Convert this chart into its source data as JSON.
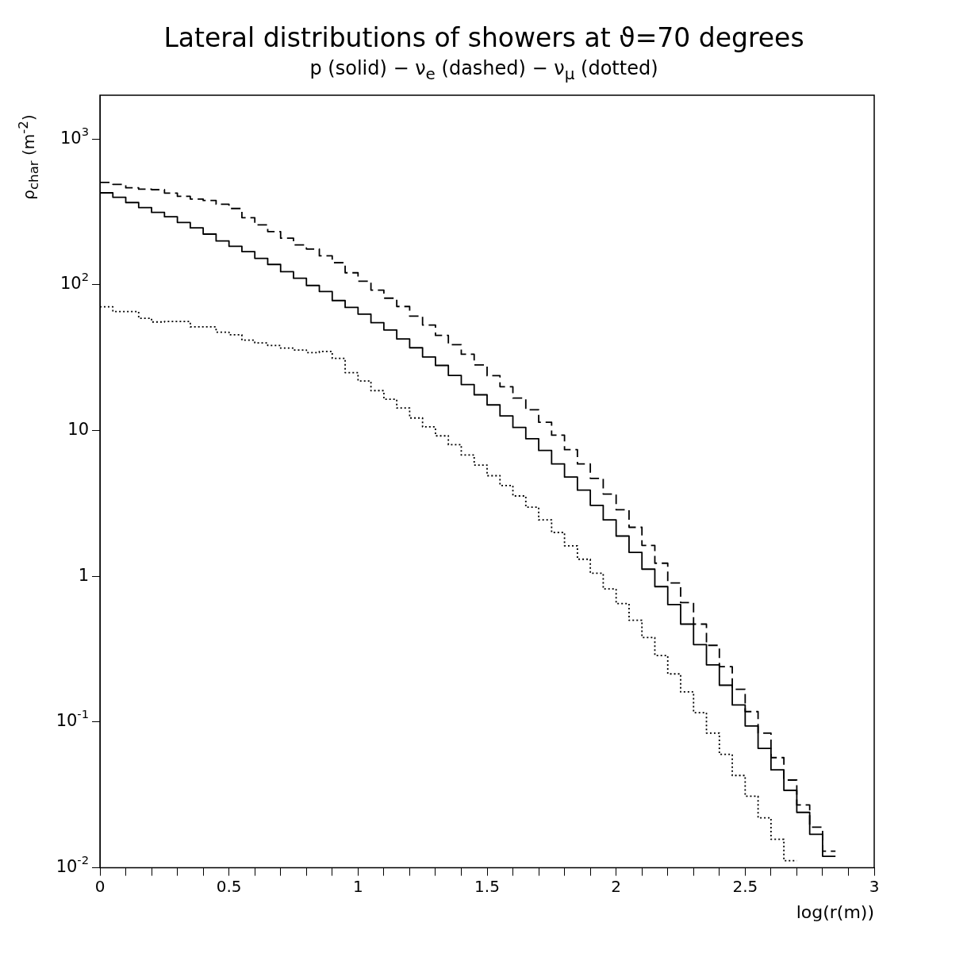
{
  "chart_data": {
    "type": "step",
    "title": "Lateral distributions of showers at ϑ=70 degrees",
    "subtitle": "p (solid) − ν$_{e}$ (dashed) − ν$_{μ}$ (dotted)",
    "xlabel": "log(r(m))",
    "ylabel": "ρ$_{char}$ (m$^{-2}$)",
    "log": true,
    "series": [
      {
        "color": "#000000",
        "line_style": "solid",
        "x": [
          0,
          0.05,
          0.1,
          0.15,
          0.2,
          0.25,
          0.3,
          0.35,
          0.4,
          0.45,
          0.5,
          0.55,
          0.6,
          0.65,
          0.7,
          0.75,
          0.8,
          0.85,
          0.9,
          0.95,
          1,
          1.05,
          1.1,
          1.15,
          1.2,
          1.25,
          1.3,
          1.35,
          1.4,
          1.45,
          1.5,
          1.55,
          1.6,
          1.65,
          1.7,
          1.75,
          1.8,
          1.85,
          1.9,
          1.95,
          2,
          2.05,
          2.1,
          2.15,
          2.2,
          2.25,
          2.3,
          2.35,
          2.4,
          2.45,
          2.5,
          2.55,
          2.6,
          2.65,
          2.7,
          2.75,
          2.8,
          2.85
        ],
        "values": [
          428,
          399,
          367,
          339,
          314,
          293,
          268,
          246,
          223,
          200,
          184,
          169,
          152,
          138,
          123,
          111,
          99,
          90,
          78,
          70,
          63,
          55,
          49,
          42.5,
          37,
          32,
          28,
          23.9,
          20.7,
          17.6,
          15,
          12.6,
          10.5,
          8.8,
          7.3,
          5.9,
          4.8,
          3.9,
          3.07,
          2.44,
          1.89,
          1.46,
          1.12,
          0.85,
          0.64,
          0.47,
          0.34,
          0.247,
          0.179,
          0.131,
          0.094,
          0.066,
          0.047,
          0.034,
          0.024,
          0.017,
          0.012,
          0.012
        ]
      },
      {
        "color": "#000000",
        "line_style": "dashed",
        "x": [
          0,
          0.05,
          0.1,
          0.15,
          0.2,
          0.25,
          0.3,
          0.35,
          0.4,
          0.45,
          0.5,
          0.55,
          0.6,
          0.65,
          0.7,
          0.75,
          0.8,
          0.85,
          0.9,
          0.95,
          1,
          1.05,
          1.1,
          1.15,
          1.2,
          1.25,
          1.3,
          1.35,
          1.4,
          1.45,
          1.5,
          1.55,
          1.6,
          1.65,
          1.7,
          1.75,
          1.8,
          1.85,
          1.9,
          1.95,
          2,
          2.05,
          2.1,
          2.15,
          2.2,
          2.25,
          2.3,
          2.35,
          2.4,
          2.45,
          2.5,
          2.55,
          2.6,
          2.65,
          2.7,
          2.75,
          2.8,
          2.85
        ],
        "values": [
          504,
          489,
          463,
          453,
          450,
          426,
          405,
          388,
          379,
          357,
          334,
          289,
          258,
          232,
          209,
          188,
          176,
          158,
          142,
          121,
          106,
          92,
          81,
          71,
          61,
          53,
          45,
          38.8,
          33.4,
          28.2,
          23.8,
          20,
          16.7,
          13.9,
          11.4,
          9.3,
          7.4,
          5.9,
          4.7,
          3.67,
          2.86,
          2.17,
          1.63,
          1.23,
          0.9,
          0.66,
          0.47,
          0.336,
          0.24,
          0.168,
          0.118,
          0.084,
          0.057,
          0.04,
          0.027,
          0.019,
          0.013,
          0.013
        ]
      },
      {
        "color": "#000000",
        "line_style": "dotted",
        "x": [
          0,
          0.05,
          0.1,
          0.15,
          0.2,
          0.25,
          0.3,
          0.35,
          0.4,
          0.45,
          0.5,
          0.55,
          0.6,
          0.65,
          0.7,
          0.75,
          0.8,
          0.85,
          0.9,
          0.95,
          1,
          1.05,
          1.1,
          1.15,
          1.2,
          1.25,
          1.3,
          1.35,
          1.4,
          1.45,
          1.5,
          1.55,
          1.6,
          1.65,
          1.7,
          1.75,
          1.8,
          1.85,
          1.9,
          1.95,
          2,
          2.05,
          2.1,
          2.15,
          2.2,
          2.25,
          2.3,
          2.35,
          2.4,
          2.45,
          2.5,
          2.55,
          2.6,
          2.65,
          2.7
        ],
        "values": [
          70.6,
          65.6,
          65.6,
          59,
          55.6,
          56,
          56,
          51.5,
          51.5,
          47.3,
          45.4,
          41.7,
          40,
          38.4,
          36.8,
          35.7,
          34.3,
          34.9,
          31.3,
          25,
          21.9,
          18.8,
          16.4,
          14.3,
          12.2,
          10.6,
          9.2,
          8,
          6.8,
          5.8,
          4.9,
          4.2,
          3.56,
          2.98,
          2.44,
          2,
          1.62,
          1.31,
          1.05,
          0.82,
          0.65,
          0.5,
          0.38,
          0.286,
          0.214,
          0.161,
          0.116,
          0.084,
          0.06,
          0.043,
          0.031,
          0.022,
          0.0157,
          0.0112,
          0.0112
        ]
      }
    ],
    "xlim": [
      0,
      3
    ],
    "ylim": [
      0.01,
      2000
    ],
    "xticks": [
      0,
      {
        "value": 0.1,
        "label": null
      },
      {
        "value": 0.2,
        "label": null
      },
      {
        "value": 0.3,
        "label": null
      },
      {
        "value": 0.4,
        "label": null
      },
      0.5,
      {
        "value": 0.6,
        "label": null
      },
      {
        "value": 0.7,
        "label": null
      },
      {
        "value": 0.8,
        "label": null
      },
      {
        "value": 0.9,
        "label": null
      },
      1,
      {
        "value": 1.1,
        "label": null
      },
      {
        "value": 1.2,
        "label": null
      },
      {
        "value": 1.3,
        "label": null
      },
      {
        "value": 1.4,
        "label": null
      },
      1.5,
      {
        "value": 1.6,
        "label": null
      },
      {
        "value": 1.7,
        "label": null
      },
      {
        "value": 1.8,
        "label": null
      },
      {
        "value": 1.9,
        "label": null
      },
      2,
      {
        "value": 2.1,
        "label": null
      },
      {
        "value": 2.2,
        "label": null
      },
      {
        "value": 2.3,
        "label": null
      },
      {
        "value": 2.4,
        "label": null
      },
      2.5,
      {
        "value": 2.6,
        "label": null
      },
      {
        "value": 2.7,
        "label": null
      },
      {
        "value": 2.8,
        "label": null
      },
      {
        "value": 2.9,
        "label": null
      },
      3
    ],
    "yticks": [
      {
        "value": 0.01,
        "label": "10$^{-2}$"
      },
      {
        "value": 0.1,
        "label": "10$^{-1}$"
      },
      1,
      10,
      {
        "value": 100,
        "label": "10$^{2}$"
      },
      {
        "value": 1000,
        "label": "10$^{3}$"
      }
    ]
  }
}
